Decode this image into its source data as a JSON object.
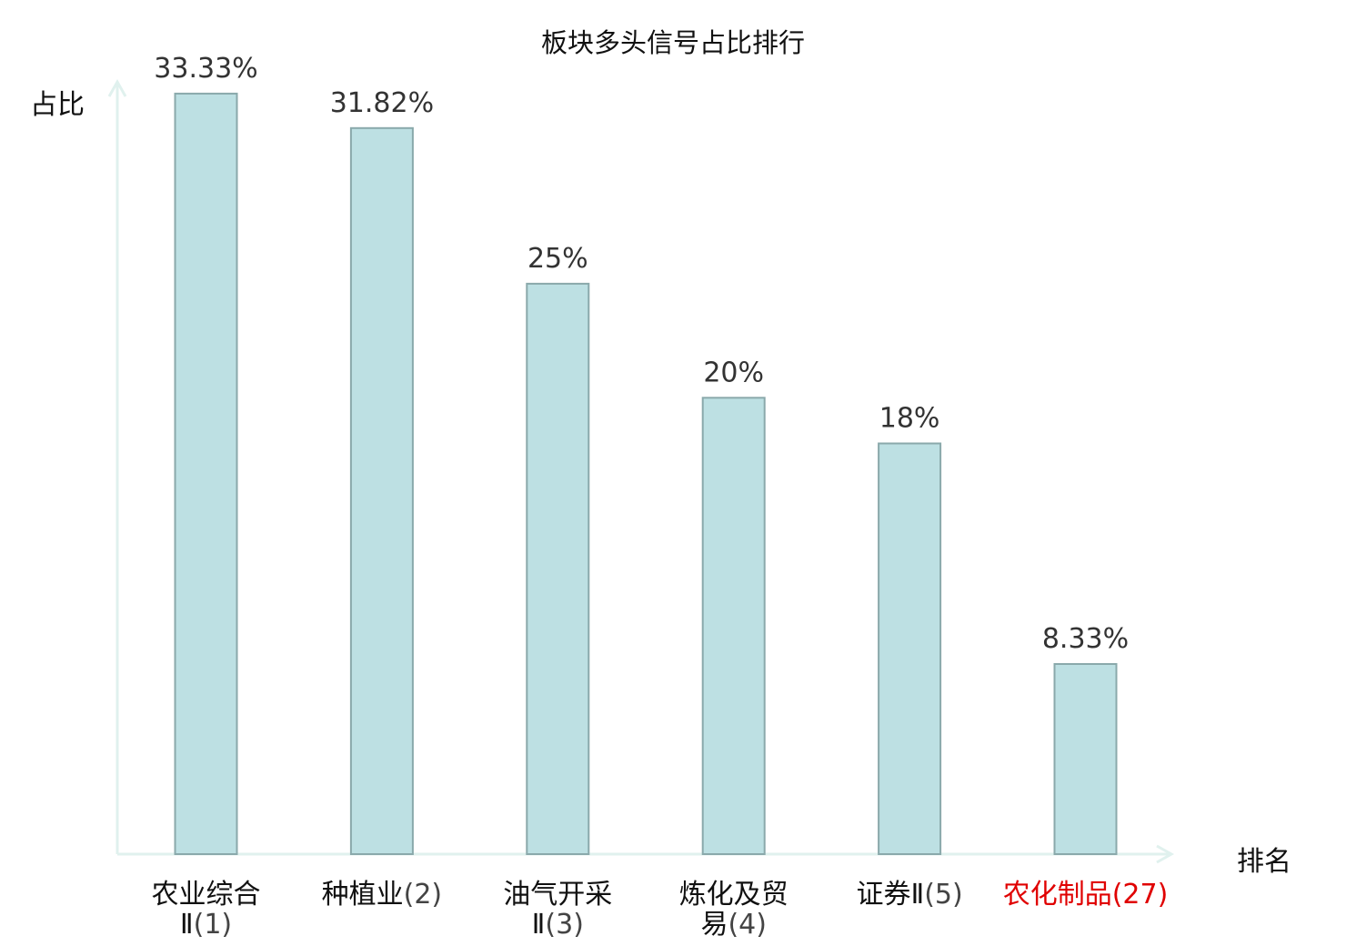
{
  "chart_data": {
    "type": "bar",
    "title": "板块多头信号占比排行",
    "ylabel": "占比",
    "xlabel": "排名",
    "ylim": [
      0,
      35
    ],
    "grid": false,
    "categories": [
      {
        "lines": [
          "农业综合",
          "Ⅱ(1)"
        ]
      },
      {
        "lines": [
          "种植业(2)"
        ]
      },
      {
        "lines": [
          "油气开采",
          "Ⅱ(3)"
        ]
      },
      {
        "lines": [
          "炼化及贸",
          "易(4)"
        ]
      },
      {
        "lines": [
          "证券Ⅱ(5)"
        ]
      },
      {
        "lines": [
          "农化制品(27)"
        ],
        "highlight": true
      }
    ],
    "values": [
      33.33,
      31.82,
      25,
      20,
      18,
      8.33
    ],
    "value_labels": [
      "33.33%",
      "31.82%",
      "25%",
      "20%",
      "18%",
      "8.33%"
    ],
    "colors": {
      "bar_fill": "#bde0e3",
      "bar_stroke": "#8aa9ab",
      "axis": "#e0f1ee",
      "highlight_label": "#e00000"
    }
  }
}
